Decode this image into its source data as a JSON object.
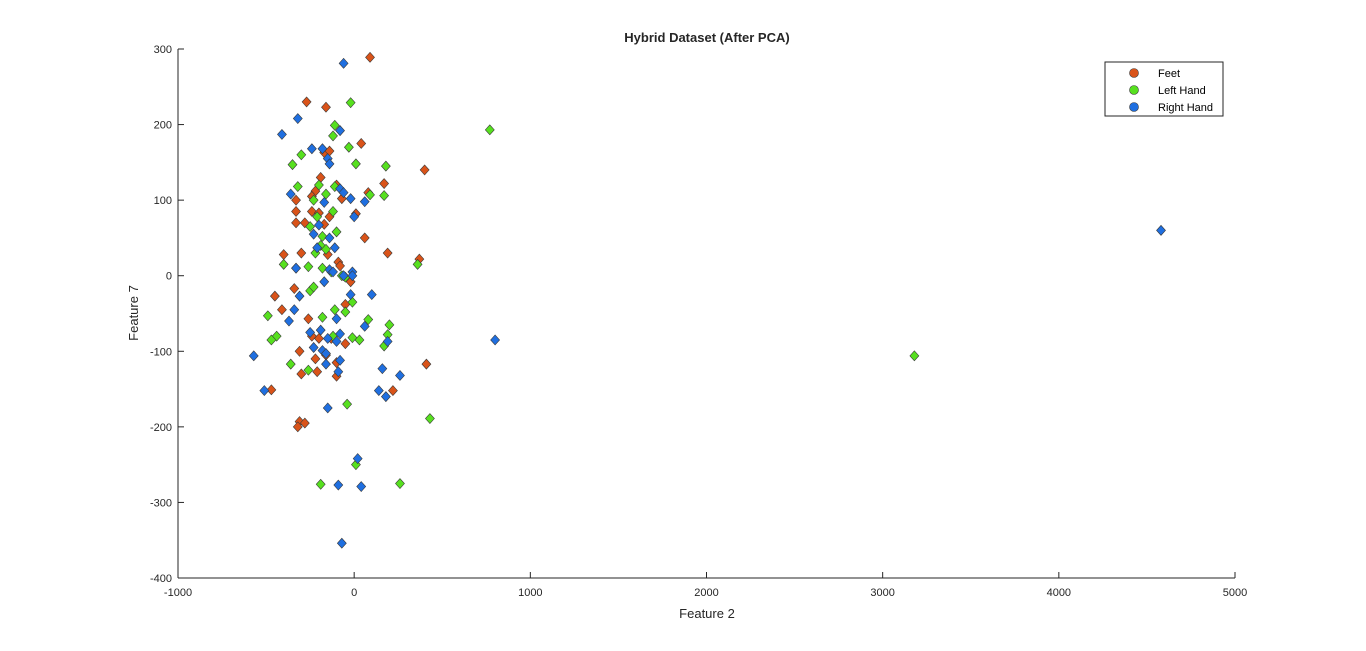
{
  "chart_data": {
    "type": "scatter",
    "title": "Hybrid Dataset (After PCA)",
    "xlabel": "Feature 2",
    "ylabel": "Feature 7",
    "xlim": [
      -1000,
      5000
    ],
    "ylim": [
      -400,
      300
    ],
    "xticks": [
      -1000,
      0,
      1000,
      2000,
      3000,
      4000,
      5000
    ],
    "yticks": [
      -400,
      -300,
      -200,
      -100,
      0,
      100,
      200,
      300
    ],
    "grid": false,
    "legend_position": "top-right",
    "series": [
      {
        "name": "Feet",
        "color": "#d95319",
        "points": [
          [
            90,
            289
          ],
          [
            -270,
            230
          ],
          [
            -160,
            223
          ],
          [
            40,
            175
          ],
          [
            -170,
            163
          ],
          [
            -140,
            165
          ],
          [
            400,
            140
          ],
          [
            -190,
            130
          ],
          [
            -100,
            120
          ],
          [
            170,
            122
          ],
          [
            -220,
            112
          ],
          [
            -240,
            105
          ],
          [
            80,
            110
          ],
          [
            -330,
            100
          ],
          [
            -70,
            102
          ],
          [
            -240,
            85
          ],
          [
            -330,
            85
          ],
          [
            -200,
            83
          ],
          [
            -140,
            78
          ],
          [
            10,
            82
          ],
          [
            -330,
            70
          ],
          [
            -280,
            70
          ],
          [
            -170,
            68
          ],
          [
            60,
            50
          ],
          [
            -400,
            28
          ],
          [
            -300,
            30
          ],
          [
            -150,
            28
          ],
          [
            190,
            30
          ],
          [
            370,
            22
          ],
          [
            -90,
            18
          ],
          [
            -330,
            10
          ],
          [
            -80,
            13
          ],
          [
            -340,
            -17
          ],
          [
            -450,
            -27
          ],
          [
            -50,
            -38
          ],
          [
            -20,
            -8
          ],
          [
            -410,
            -45
          ],
          [
            -260,
            -57
          ],
          [
            -200,
            -83
          ],
          [
            -130,
            -83
          ],
          [
            -50,
            -90
          ],
          [
            -310,
            -100
          ],
          [
            -220,
            -110
          ],
          [
            -160,
            -105
          ],
          [
            -100,
            -115
          ],
          [
            410,
            -117
          ],
          [
            -210,
            -127
          ],
          [
            -300,
            -130
          ],
          [
            -100,
            -133
          ],
          [
            -470,
            -151
          ],
          [
            220,
            -152
          ],
          [
            -310,
            -193
          ],
          [
            -280,
            -195
          ],
          [
            -320,
            -200
          ],
          [
            -240,
            -80
          ]
        ]
      },
      {
        "name": "Left Hand",
        "color": "#57e01f",
        "points": [
          [
            -20,
            229
          ],
          [
            -110,
            199
          ],
          [
            -120,
            185
          ],
          [
            -30,
            170
          ],
          [
            -300,
            160
          ],
          [
            -350,
            147
          ],
          [
            10,
            148
          ],
          [
            180,
            145
          ],
          [
            -320,
            118
          ],
          [
            -200,
            120
          ],
          [
            -110,
            118
          ],
          [
            -160,
            108
          ],
          [
            90,
            107
          ],
          [
            170,
            106
          ],
          [
            -230,
            100
          ],
          [
            -120,
            85
          ],
          [
            -210,
            78
          ],
          [
            -250,
            65
          ],
          [
            -100,
            58
          ],
          [
            -180,
            52
          ],
          [
            -190,
            40
          ],
          [
            -160,
            35
          ],
          [
            -220,
            30
          ],
          [
            -260,
            12
          ],
          [
            -180,
            10
          ],
          [
            -130,
            5
          ],
          [
            -70,
            0
          ],
          [
            -50,
            -2
          ],
          [
            -400,
            15
          ],
          [
            360,
            15
          ],
          [
            -250,
            -20
          ],
          [
            -230,
            -15
          ],
          [
            -10,
            -35
          ],
          [
            -110,
            -45
          ],
          [
            -180,
            -55
          ],
          [
            -50,
            -48
          ],
          [
            -490,
            -53
          ],
          [
            80,
            -58
          ],
          [
            200,
            -65
          ],
          [
            -440,
            -80
          ],
          [
            -470,
            -85
          ],
          [
            -120,
            -80
          ],
          [
            -10,
            -82
          ],
          [
            30,
            -85
          ],
          [
            190,
            -78
          ],
          [
            -360,
            -117
          ],
          [
            170,
            -93
          ],
          [
            -260,
            -125
          ],
          [
            -40,
            -170
          ],
          [
            430,
            -189
          ],
          [
            10,
            -250
          ],
          [
            -190,
            -276
          ],
          [
            260,
            -275
          ],
          [
            770,
            193
          ],
          [
            3180,
            -106
          ]
        ]
      },
      {
        "name": "Right Hand",
        "color": "#1f6fe0",
        "points": [
          [
            -60,
            281
          ],
          [
            -410,
            187
          ],
          [
            -320,
            208
          ],
          [
            -80,
            192
          ],
          [
            -240,
            168
          ],
          [
            -180,
            168
          ],
          [
            -150,
            155
          ],
          [
            -140,
            148
          ],
          [
            -80,
            115
          ],
          [
            -60,
            110
          ],
          [
            -360,
            108
          ],
          [
            -20,
            102
          ],
          [
            -170,
            97
          ],
          [
            60,
            98
          ],
          [
            0,
            78
          ],
          [
            -200,
            67
          ],
          [
            -230,
            55
          ],
          [
            -140,
            50
          ],
          [
            -110,
            37
          ],
          [
            -210,
            37
          ],
          [
            -330,
            10
          ],
          [
            -140,
            8
          ],
          [
            -120,
            5
          ],
          [
            -10,
            5
          ],
          [
            -60,
            0
          ],
          [
            -10,
            0
          ],
          [
            -170,
            -8
          ],
          [
            100,
            -25
          ],
          [
            -20,
            -25
          ],
          [
            -310,
            -27
          ],
          [
            -340,
            -45
          ],
          [
            -100,
            -57
          ],
          [
            60,
            -67
          ],
          [
            -370,
            -60
          ],
          [
            -250,
            -75
          ],
          [
            -190,
            -72
          ],
          [
            -80,
            -77
          ],
          [
            -150,
            -83
          ],
          [
            -100,
            -87
          ],
          [
            190,
            -87
          ],
          [
            -230,
            -95
          ],
          [
            -180,
            -99
          ],
          [
            -160,
            -103
          ],
          [
            -80,
            -112
          ],
          [
            -160,
            -117
          ],
          [
            160,
            -123
          ],
          [
            -90,
            -127
          ],
          [
            260,
            -132
          ],
          [
            -570,
            -106
          ],
          [
            -510,
            -152
          ],
          [
            140,
            -152
          ],
          [
            180,
            -160
          ],
          [
            -150,
            -175
          ],
          [
            20,
            -242
          ],
          [
            -90,
            -277
          ],
          [
            40,
            -279
          ],
          [
            -70,
            -354
          ],
          [
            800,
            -85
          ],
          [
            4580,
            60
          ]
        ]
      }
    ]
  }
}
